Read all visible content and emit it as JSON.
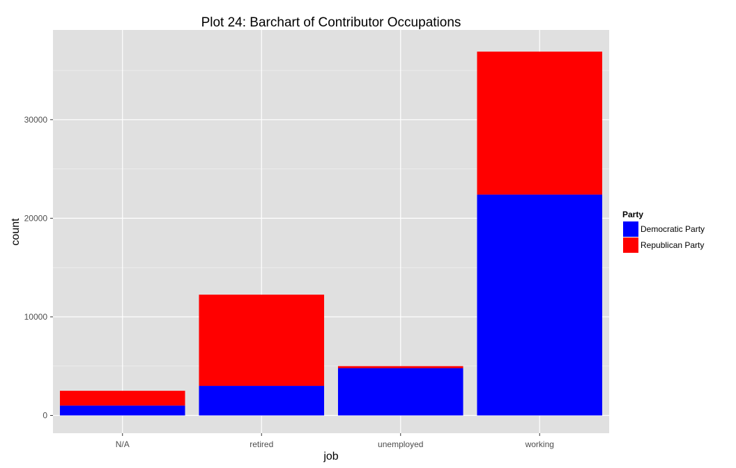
{
  "chart_data": {
    "type": "bar",
    "stacked": true,
    "title": "Plot 24: Barchart of Contributor Occupations",
    "xlabel": "job",
    "ylabel": "count",
    "categories": [
      "N/A",
      "retired",
      "unemployed",
      "working"
    ],
    "series": [
      {
        "name": "Democratic Party",
        "color": "#0000ff",
        "values": [
          1000,
          3000,
          4800,
          22400
        ]
      },
      {
        "name": "Republican Party",
        "color": "#ff0000",
        "values": [
          1500,
          9250,
          200,
          14500
        ]
      }
    ],
    "ylim": [
      -1800,
      39100
    ],
    "yticks": [
      0,
      10000,
      20000,
      30000
    ],
    "ytick_labels": [
      "0",
      "10000",
      "20000",
      "30000"
    ],
    "grid": true,
    "legend": {
      "title": "Party",
      "position": "right"
    },
    "colors": {
      "panel": "#e0e0e0",
      "grid": "#ffffff"
    }
  }
}
